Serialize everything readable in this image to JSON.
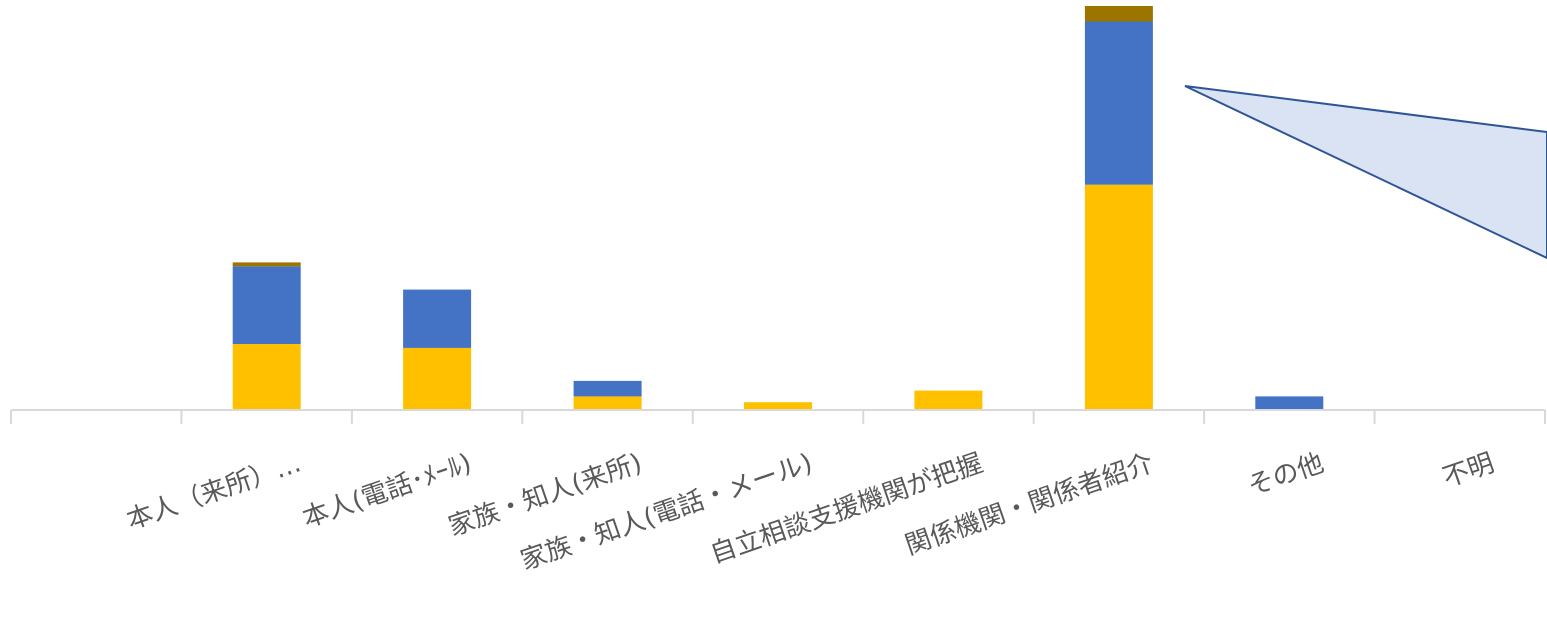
{
  "chart_data": {
    "type": "bar",
    "stacked": true,
    "categories": [
      "",
      "本人（来所）…",
      "本人(電話･ﾒｰﾙ)",
      "家族・知人(来所)",
      "家族・知人(電話・メール)",
      "自立相談支援機関が把握",
      "関係機関・関係者紹介",
      "その他",
      "不明"
    ],
    "series": [
      {
        "color": "#ffc000",
        "values": [
          0,
          17,
          16,
          3.5,
          2,
          5,
          58,
          0,
          0
        ]
      },
      {
        "color": "#4472c4",
        "values": [
          0,
          20,
          15,
          4,
          0,
          0,
          42,
          3.5,
          0
        ]
      },
      {
        "color": "#9c7400",
        "values": [
          0,
          1,
          0,
          0,
          0,
          0,
          4,
          0,
          0
        ]
      }
    ],
    "ylim": [
      0,
      104
    ],
    "legend": "none",
    "grid": false,
    "callout": {
      "fill": "#dae3f3",
      "stroke": "#2f5597"
    }
  }
}
